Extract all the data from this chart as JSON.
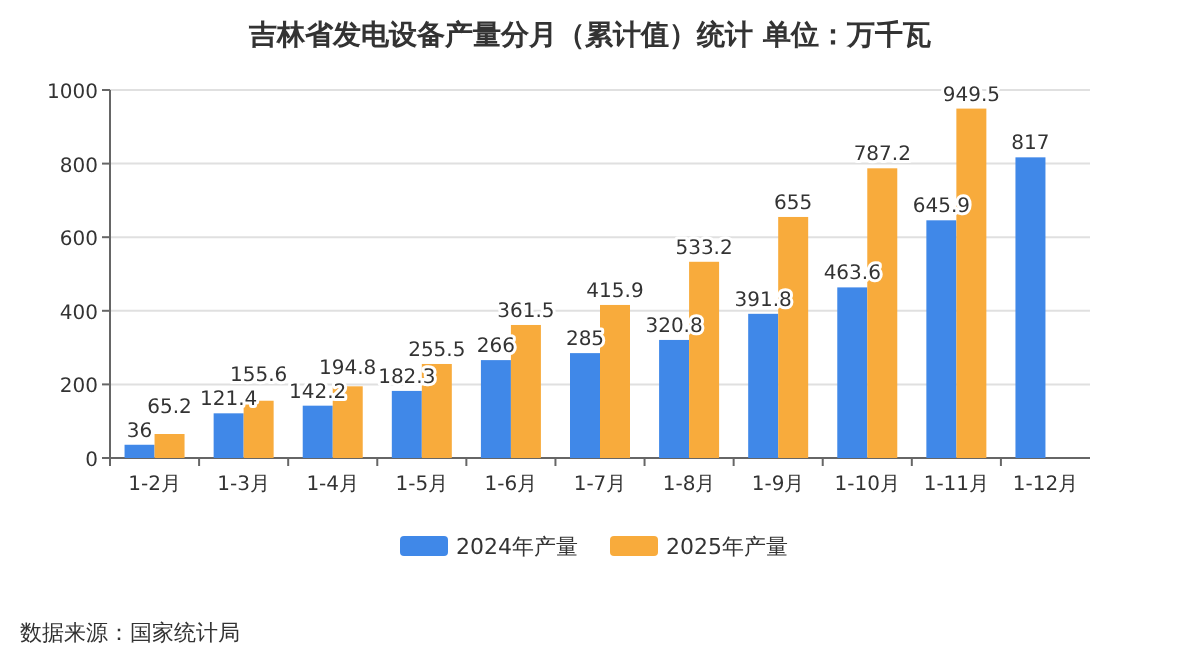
{
  "chart_data": {
    "type": "bar",
    "title": "吉林省发电设备产量分月（累计值）统计  单位：万千瓦",
    "categories": [
      "1-2月",
      "1-3月",
      "1-4月",
      "1-5月",
      "1-6月",
      "1-7月",
      "1-8月",
      "1-9月",
      "1-10月",
      "1-11月",
      "1-12月"
    ],
    "series": [
      {
        "name": "2024年产量",
        "color": "#4088e8",
        "values": [
          36,
          121.4,
          142.2,
          182.3,
          266,
          285,
          320.8,
          391.8,
          463.6,
          645.9,
          817
        ]
      },
      {
        "name": "2025年产量",
        "color": "#f8ab3c",
        "values": [
          65.2,
          155.6,
          194.8,
          255.5,
          361.5,
          415.9,
          533.2,
          655,
          787.2,
          949.5,
          null
        ]
      }
    ],
    "ylim": [
      0,
      1000
    ],
    "yticks": [
      0,
      200,
      400,
      600,
      800,
      1000
    ],
    "grid": "y",
    "legend": "bottom",
    "data_labels": true,
    "annotations": [
      "数据来源：国家统计局"
    ]
  }
}
